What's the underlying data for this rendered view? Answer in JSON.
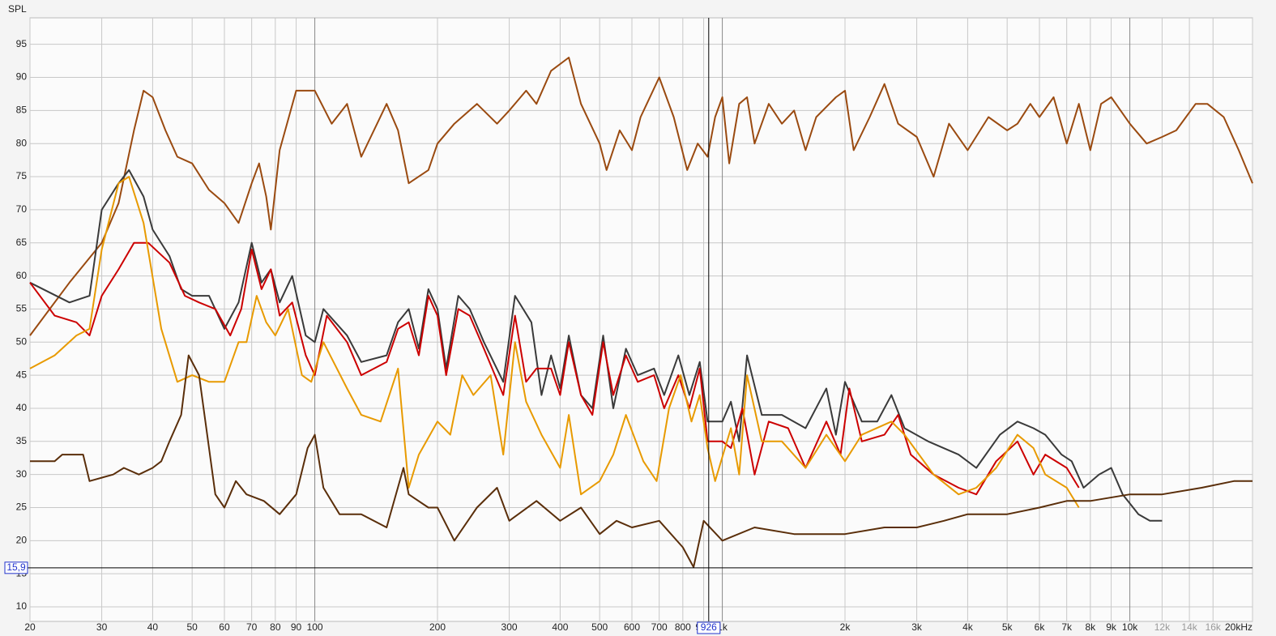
{
  "chart_data": {
    "type": "line",
    "y_label": "SPL",
    "log_x": true,
    "grid": true,
    "xlim": [
      20,
      20000
    ],
    "ylim": [
      7.8,
      99
    ],
    "xticks": [
      20,
      30,
      40,
      50,
      60,
      70,
      80,
      90,
      100,
      200,
      300,
      400,
      500,
      600,
      700,
      800,
      900,
      {
        "value": 1000,
        "label": "1k"
      },
      {
        "value": 2000,
        "label": "2k"
      },
      {
        "value": 3000,
        "label": "3k"
      },
      {
        "value": 4000,
        "label": "4k"
      },
      {
        "value": 5000,
        "label": "5k"
      },
      {
        "value": 6000,
        "label": "6k"
      },
      {
        "value": 7000,
        "label": "7k"
      },
      {
        "value": 8000,
        "label": "8k"
      },
      {
        "value": 9000,
        "label": "9k"
      },
      {
        "value": 10000,
        "label": "10k"
      },
      {
        "value": 12000,
        "label": "12k"
      },
      {
        "value": 14000,
        "label": "14k"
      },
      {
        "value": 16000,
        "label": "16k"
      },
      {
        "value": 20000,
        "label": "20kHz"
      }
    ],
    "yticks": [
      10,
      15,
      20,
      25,
      30,
      35,
      40,
      45,
      50,
      55,
      60,
      65,
      70,
      75,
      80,
      85,
      90,
      95
    ],
    "cursor": {
      "x": {
        "value": 926,
        "label": "926"
      },
      "y": {
        "value": 15.9,
        "label": "15,9"
      }
    },
    "series": [
      {
        "color": "#9a4a10",
        "x": [
          20,
          25,
          30,
          33,
          36,
          38,
          40,
          43,
          46,
          50,
          55,
          60,
          65,
          70,
          73,
          76,
          78,
          82,
          90,
          100,
          110,
          120,
          130,
          150,
          160,
          170,
          190,
          200,
          220,
          250,
          280,
          300,
          330,
          350,
          380,
          420,
          450,
          500,
          520,
          560,
          600,
          630,
          700,
          760,
          820,
          870,
          920,
          960,
          1000,
          1040,
          1100,
          1150,
          1200,
          1300,
          1400,
          1500,
          1600,
          1700,
          1900,
          2000,
          2100,
          2300,
          2500,
          2700,
          3000,
          3300,
          3600,
          4000,
          4500,
          5000,
          5300,
          5700,
          6000,
          6500,
          7000,
          7500,
          8000,
          8500,
          9000,
          10000,
          11000,
          12000,
          13000,
          14500,
          15500,
          17000,
          18500,
          20000
        ],
        "values": [
          51,
          59,
          65,
          71,
          82,
          88,
          87,
          82,
          78,
          77,
          73,
          71,
          68,
          74,
          77,
          72,
          67,
          79,
          88,
          88,
          83,
          86,
          78,
          86,
          82,
          74,
          76,
          80,
          83,
          86,
          83,
          85,
          88,
          86,
          91,
          93,
          86,
          80,
          76,
          82,
          79,
          84,
          90,
          84,
          76,
          80,
          78,
          84,
          87,
          77,
          86,
          87,
          80,
          86,
          83,
          85,
          79,
          84,
          87,
          88,
          79,
          84,
          89,
          83,
          81,
          75,
          83,
          79,
          84,
          82,
          83,
          86,
          84,
          87,
          80,
          86,
          79,
          86,
          87,
          83,
          80,
          81,
          82,
          86,
          86,
          84,
          79,
          74
        ]
      },
      {
        "color": "#3a3a3a",
        "x": [
          20,
          25,
          28,
          30,
          33,
          35,
          38,
          40,
          44,
          47,
          50,
          55,
          60,
          65,
          70,
          74,
          78,
          82,
          88,
          95,
          100,
          105,
          120,
          130,
          150,
          160,
          170,
          180,
          190,
          200,
          210,
          225,
          240,
          260,
          290,
          310,
          340,
          360,
          380,
          400,
          420,
          450,
          480,
          510,
          540,
          580,
          620,
          680,
          720,
          780,
          830,
          880,
          920,
          1000,
          1050,
          1100,
          1150,
          1250,
          1400,
          1600,
          1800,
          1900,
          2000,
          2200,
          2400,
          2600,
          2800,
          3200,
          3800,
          4200,
          4800,
          5300,
          5800,
          6200,
          6800,
          7200,
          7700,
          8400,
          9000,
          9600,
          10500,
          11200,
          12000
        ],
        "values": [
          59,
          56,
          57,
          70,
          74,
          76,
          72,
          67,
          63,
          58,
          57,
          57,
          52,
          56,
          65,
          59,
          61,
          56,
          60,
          51,
          50,
          55,
          51,
          47,
          48,
          53,
          55,
          49,
          58,
          55,
          46,
          57,
          55,
          50,
          44,
          57,
          53,
          42,
          48,
          43,
          51,
          42,
          40,
          51,
          40,
          49,
          45,
          46,
          42,
          48,
          42,
          47,
          38,
          38,
          41,
          35,
          48,
          39,
          39,
          37,
          43,
          36,
          44,
          38,
          38,
          42,
          37,
          35,
          33,
          31,
          36,
          38,
          37,
          36,
          33,
          32,
          28,
          30,
          31,
          27,
          24,
          23,
          23
        ]
      },
      {
        "color": "#cc0000",
        "x": [
          20,
          23,
          26,
          28,
          30,
          33,
          36,
          39,
          44,
          48,
          52,
          57,
          62,
          66,
          70,
          74,
          78,
          82,
          88,
          95,
          100,
          107,
          120,
          130,
          150,
          160,
          170,
          180,
          190,
          200,
          210,
          225,
          240,
          260,
          290,
          310,
          330,
          350,
          380,
          400,
          420,
          450,
          480,
          510,
          540,
          580,
          620,
          680,
          720,
          780,
          830,
          880,
          920,
          1000,
          1050,
          1120,
          1200,
          1300,
          1450,
          1600,
          1800,
          1950,
          2050,
          2200,
          2500,
          2700,
          2900,
          3300,
          3800,
          4200,
          4700,
          5300,
          5800,
          6200,
          7000,
          7500
        ],
        "values": [
          59,
          54,
          53,
          51,
          57,
          61,
          65,
          65,
          62,
          57,
          56,
          55,
          51,
          55,
          64,
          58,
          61,
          54,
          56,
          48,
          45,
          54,
          50,
          45,
          47,
          52,
          53,
          48,
          57,
          54,
          45,
          55,
          54,
          49,
          42,
          54,
          44,
          46,
          46,
          42,
          50,
          42,
          39,
          50,
          42,
          48,
          44,
          45,
          40,
          45,
          40,
          46,
          35,
          35,
          34,
          40,
          30,
          38,
          37,
          31,
          38,
          33,
          43,
          35,
          36,
          39,
          33,
          30,
          28,
          27,
          32,
          35,
          30,
          33,
          31,
          28
        ]
      },
      {
        "color": "#e89a00",
        "x": [
          20,
          23,
          26,
          28,
          30,
          33,
          35,
          38,
          42,
          46,
          50,
          55,
          60,
          65,
          68,
          72,
          76,
          80,
          86,
          93,
          98,
          105,
          120,
          130,
          145,
          160,
          170,
          180,
          200,
          215,
          230,
          245,
          270,
          290,
          310,
          330,
          360,
          400,
          420,
          450,
          500,
          540,
          580,
          640,
          690,
          740,
          790,
          840,
          880,
          920,
          960,
          1050,
          1100,
          1150,
          1250,
          1400,
          1600,
          1800,
          2000,
          2200,
          2600,
          2800,
          3300,
          3800,
          4200,
          4700,
          5300,
          5800,
          6200,
          7000,
          7500
        ],
        "values": [
          46,
          48,
          51,
          52,
          64,
          74,
          75,
          68,
          52,
          44,
          45,
          44,
          44,
          50,
          50,
          57,
          53,
          51,
          55,
          45,
          44,
          50,
          43,
          39,
          38,
          46,
          28,
          33,
          38,
          36,
          45,
          42,
          45,
          33,
          50,
          41,
          36,
          31,
          39,
          27,
          29,
          33,
          39,
          32,
          29,
          40,
          45,
          38,
          42,
          34,
          29,
          37,
          30,
          45,
          35,
          35,
          31,
          36,
          32,
          36,
          38,
          36,
          30,
          27,
          28,
          31,
          36,
          34,
          30,
          28,
          25
        ]
      },
      {
        "color": "#5a2e0a",
        "x": [
          20,
          23,
          24,
          27,
          28,
          32,
          34,
          37,
          40,
          42,
          44,
          47,
          49,
          52,
          55,
          57,
          60,
          64,
          68,
          75,
          82,
          90,
          96,
          100,
          105,
          115,
          130,
          150,
          165,
          170,
          190,
          200,
          220,
          250,
          280,
          300,
          350,
          400,
          450,
          500,
          550,
          600,
          700,
          800,
          850,
          900,
          1000,
          1200,
          1500,
          2000,
          2500,
          3000,
          3500,
          4000,
          5000,
          6000,
          7000,
          8000,
          10000,
          12000,
          15000,
          18000,
          20000
        ],
        "values": [
          32,
          32,
          33,
          33,
          29,
          30,
          31,
          30,
          31,
          32,
          35,
          39,
          48,
          45,
          34,
          27,
          25,
          29,
          27,
          26,
          24,
          27,
          34,
          36,
          28,
          24,
          24,
          22,
          31,
          27,
          25,
          25,
          20,
          25,
          28,
          23,
          26,
          23,
          25,
          21,
          23,
          22,
          23,
          19,
          16,
          23,
          20,
          22,
          21,
          21,
          22,
          22,
          23,
          24,
          24,
          25,
          26,
          26,
          27,
          27,
          28,
          29,
          29
        ]
      }
    ]
  }
}
